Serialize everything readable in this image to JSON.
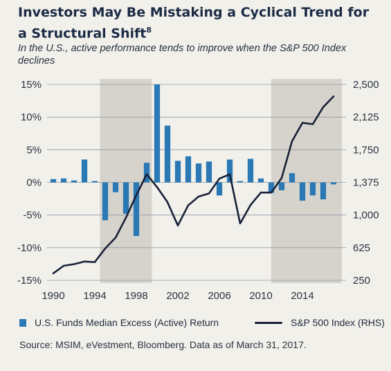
{
  "title": "Investors May Be Mistaking a Cyclical Trend for a Structural Shift",
  "title_footnote": "8",
  "subtitle": "In the U.S., active performance tends to improve when the S&P 500 Index declines",
  "source": "Source: MSIM, eVestment, Bloomberg. Data as of March 31, 2017.",
  "colors": {
    "bar": "#2a78b4",
    "line": "#172036",
    "shade": "#d6d3cd",
    "background": "#f1f0eb"
  },
  "chart_data": {
    "type": "bar",
    "x_tick_labels": [
      "1990",
      "1994",
      "1998",
      "2002",
      "2006",
      "2010",
      "2014"
    ],
    "y_left_tick_labels": [
      "15%",
      "10%",
      "5%",
      "0%",
      "-5%",
      "-10%",
      "-15%"
    ],
    "y_right_tick_labels": [
      "2,500",
      "2,125",
      "1,750",
      "1,375",
      "1,000",
      "625",
      "250"
    ],
    "ylim_left": [
      -15,
      15
    ],
    "ylim_right": [
      250,
      2500
    ],
    "grid": true,
    "shaded_periods": [
      [
        1994.5,
        1999.5
      ],
      [
        2011.0,
        2017.8
      ]
    ],
    "series": [
      {
        "name": "U.S. Funds Median Excess (Active) Return",
        "type": "bar",
        "axis": "left",
        "x": [
          1990,
          1991,
          1992,
          1993,
          1994,
          1995,
          1996,
          1997,
          1998,
          1999,
          2000,
          2001,
          2002,
          2003,
          2004,
          2005,
          2006,
          2007,
          2008,
          2009,
          2010,
          2011,
          2012,
          2013,
          2014,
          2015,
          2016,
          2017
        ],
        "values": [
          0.5,
          0.6,
          0.3,
          3.5,
          0.2,
          -5.8,
          -1.5,
          -4.8,
          -8.2,
          3.0,
          15.0,
          8.7,
          3.3,
          4.0,
          2.9,
          3.2,
          -2.0,
          3.5,
          0.2,
          3.6,
          0.6,
          -1.6,
          -1.2,
          1.4,
          -2.8,
          -2.0,
          -2.6,
          -0.3
        ]
      },
      {
        "name": "S&P 500 Index (RHS)",
        "type": "line",
        "axis": "right",
        "x": [
          1990,
          1991,
          1992,
          1993,
          1994,
          1995,
          1996,
          1997,
          1998,
          1999,
          2000,
          2001,
          2002,
          2003,
          2004,
          2005,
          2006,
          2007,
          2008,
          2009,
          2010,
          2011,
          2012,
          2013,
          2014,
          2015,
          2016,
          2017
        ],
        "values": [
          330,
          417,
          436,
          466,
          459,
          616,
          740,
          970,
          1229,
          1469,
          1320,
          1148,
          880,
          1112,
          1212,
          1248,
          1418,
          1468,
          903,
          1115,
          1258,
          1258,
          1426,
          1848,
          2059,
          2044,
          2239,
          2363
        ]
      }
    ]
  }
}
